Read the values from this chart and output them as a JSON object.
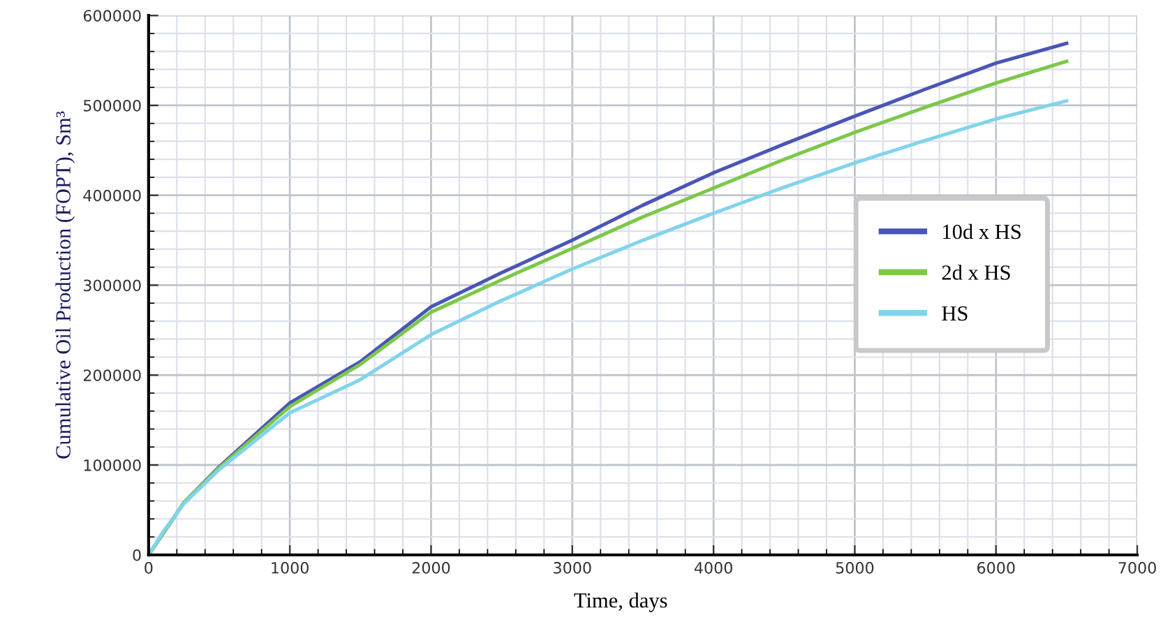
{
  "chart_data": {
    "type": "line",
    "xlabel": "Time, days",
    "ylabel": "Cumulative Oil Production (FOPT), Sm³",
    "xlim": [
      0,
      7000
    ],
    "ylim": [
      0,
      600000
    ],
    "xticks": [
      0,
      1000,
      2000,
      3000,
      4000,
      5000,
      6000,
      7000
    ],
    "yticks": [
      0,
      100000,
      200000,
      300000,
      400000,
      500000,
      600000
    ],
    "grid": true,
    "legend": "right",
    "marker": "none",
    "line_style": "solid",
    "series": [
      {
        "name": "10d x HS",
        "color": "#4a55b5",
        "x": [
          0,
          250,
          500,
          1000,
          1500,
          2000,
          2500,
          3000,
          3500,
          4000,
          4500,
          5000,
          5500,
          6000,
          6500
        ],
        "values": [
          0,
          58000,
          98000,
          169000,
          215000,
          276000,
          314000,
          350000,
          389000,
          425000,
          457000,
          488000,
          518000,
          547000,
          569000
        ]
      },
      {
        "name": "2d x HS",
        "color": "#7cc84a",
        "x": [
          0,
          250,
          500,
          1000,
          1500,
          2000,
          2500,
          3000,
          3500,
          4000,
          4500,
          5000,
          5500,
          6000,
          6500
        ],
        "values": [
          0,
          58000,
          97000,
          165000,
          212000,
          270000,
          306000,
          341000,
          376000,
          408000,
          440000,
          470000,
          498000,
          525000,
          549000
        ]
      },
      {
        "name": "HS",
        "color": "#80d4ec",
        "x": [
          0,
          100,
          250,
          500,
          1000,
          1500,
          2000,
          2500,
          3000,
          3500,
          4000,
          4500,
          5000,
          5500,
          6000,
          6500
        ],
        "values": [
          0,
          25000,
          57000,
          95000,
          158000,
          195000,
          245000,
          283000,
          318000,
          350000,
          380000,
          409000,
          436000,
          461000,
          485000,
          505000
        ]
      }
    ]
  }
}
